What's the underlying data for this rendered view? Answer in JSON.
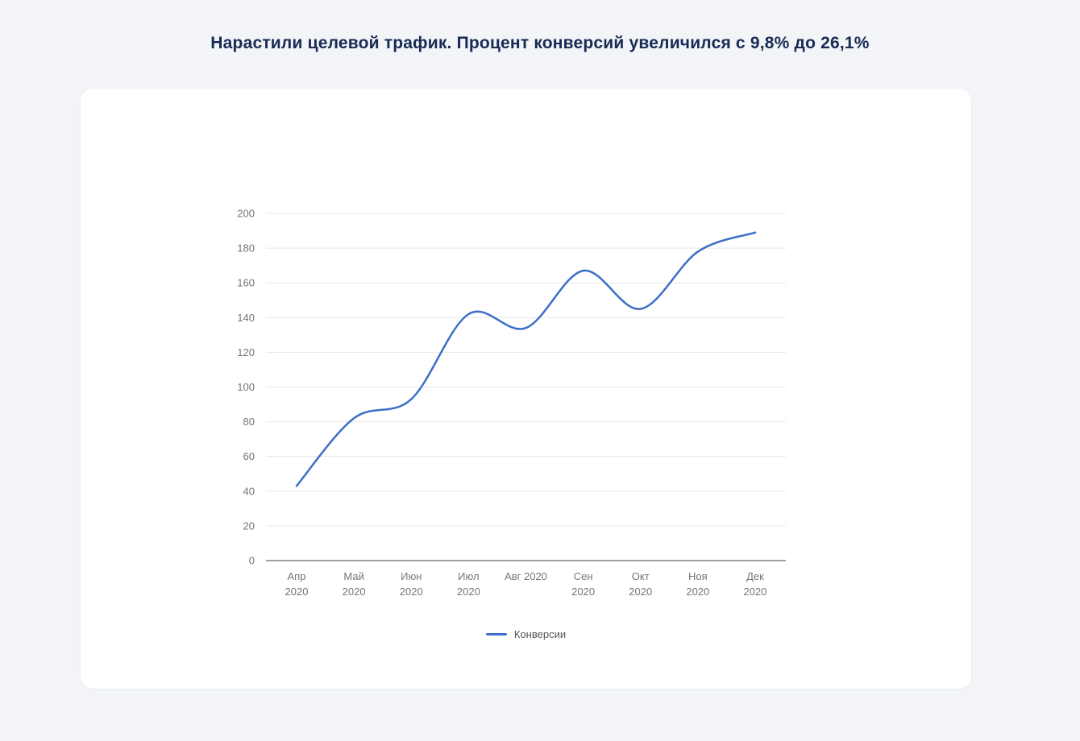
{
  "title": "Нарастили целевой трафик. Процент конверсий увеличился с 9,8% до 26,1%",
  "colors": {
    "accent": "#3d6fc8",
    "title_text": "#172a53",
    "page_background": "#f2f4f7",
    "card_background": "#ffffff",
    "grid_line": "#e6e6e6",
    "axis_line": "#424242",
    "tick_label": "#757575",
    "legend_text": "#555555"
  },
  "chart_data": {
    "type": "line",
    "smooth": true,
    "grid": true,
    "legend_position": "bottom",
    "title": "",
    "xlabel": "",
    "ylabel": "",
    "ylim": [
      0,
      200
    ],
    "yticks": [
      0,
      20,
      40,
      60,
      80,
      100,
      120,
      140,
      160,
      180,
      200
    ],
    "categories": [
      "Апр 2020",
      "Май 2020",
      "Июн 2020",
      "Июл 2020",
      "Авг 2020",
      "Сен 2020",
      "Окт 2020",
      "Ноя 2020",
      "Дек 2020"
    ],
    "x_tick_lines": [
      [
        "Апр",
        "2020"
      ],
      [
        "Май",
        "2020"
      ],
      [
        "Июн",
        "2020"
      ],
      [
        "Июл",
        "2020"
      ],
      [
        "Авг 2020"
      ],
      [
        "Сен",
        "2020"
      ],
      [
        "Окт",
        "2020"
      ],
      [
        "Ноя",
        "2020"
      ],
      [
        "Дек",
        "2020"
      ]
    ],
    "series": [
      {
        "name": "Конверсии",
        "color": "#3d6fc8",
        "values": [
          43,
          82,
          93,
          142,
          134,
          167,
          145,
          178,
          189
        ]
      }
    ]
  }
}
